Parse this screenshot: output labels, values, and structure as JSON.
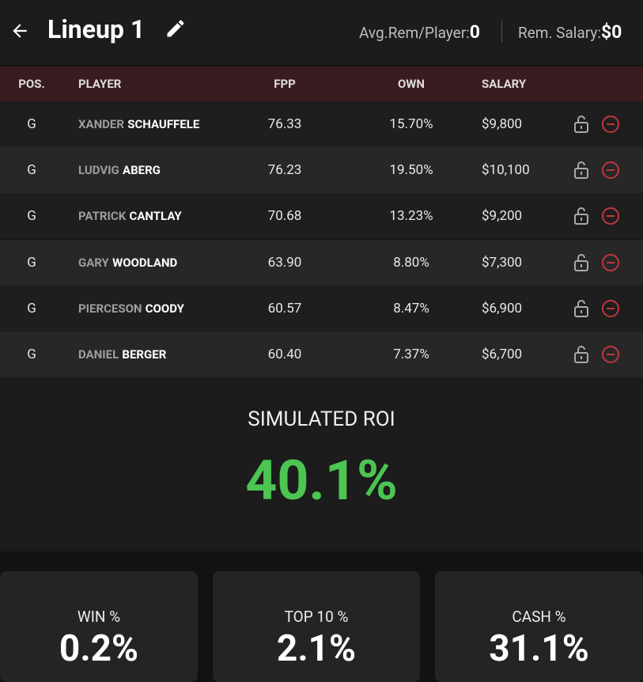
{
  "header": {
    "title": "Lineup 1",
    "avg_label": "Avg.Rem/Player:",
    "avg_value": "0",
    "salary_label": "Rem. Salary:",
    "salary_value": "$0"
  },
  "table": {
    "columns": [
      "POS.",
      "PLAYER",
      "FPP",
      "OWN",
      "SALARY"
    ],
    "rows": [
      {
        "pos": "G",
        "first": "XANDER",
        "last": "SCHAUFFELE",
        "fpp": "76.33",
        "own": "15.70%",
        "salary": "$9,800"
      },
      {
        "pos": "G",
        "first": "LUDVIG",
        "last": "ABERG",
        "fpp": "76.23",
        "own": "19.50%",
        "salary": "$10,100"
      },
      {
        "pos": "G",
        "first": "PATRICK",
        "last": "CANTLAY",
        "fpp": "70.68",
        "own": "13.23%",
        "salary": "$9,200"
      },
      {
        "pos": "G",
        "first": "GARY",
        "last": "WOODLAND",
        "fpp": "63.90",
        "own": "8.80%",
        "salary": "$7,300"
      },
      {
        "pos": "G",
        "first": "PIERCESON",
        "last": "COODY",
        "fpp": "60.57",
        "own": "8.47%",
        "salary": "$6,900"
      },
      {
        "pos": "G",
        "first": "DANIEL",
        "last": "BERGER",
        "fpp": "60.40",
        "own": "7.37%",
        "salary": "$6,700"
      }
    ]
  },
  "roi": {
    "label": "SIMULATED ROI",
    "value": "40.1%"
  },
  "stats": [
    {
      "label": "WIN %",
      "value": "0.2%"
    },
    {
      "label": "TOP 10 %",
      "value": "2.1%"
    },
    {
      "label": "CASH %",
      "value": "31.1%"
    }
  ]
}
